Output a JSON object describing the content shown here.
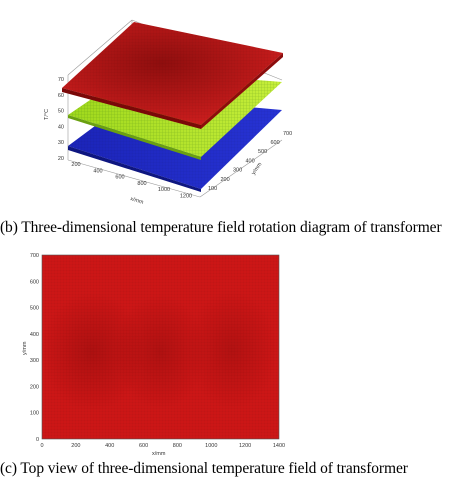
{
  "captions": {
    "b": "(b) Three-dimensional temperature field rotation diagram of transformer",
    "c": "(c) Top view of three-dimensional temperature field of transformer"
  },
  "chart_data": [
    {
      "type": "surface3d",
      "zlabel": "T/°C",
      "xlabel": "x/mm",
      "ylabel": "y/mm",
      "z_ticks": [
        "20",
        "30",
        "40",
        "50",
        "60",
        "70"
      ],
      "x_ticks": [
        "200",
        "400",
        "600",
        "800",
        "1000",
        "1200"
      ],
      "y_ticks": [
        "100",
        "200",
        "300",
        "400",
        "500",
        "600",
        "700"
      ],
      "layers": [
        {
          "color": "#c41a1a",
          "level": 68
        },
        {
          "color": "#a6e01e",
          "level": 50
        },
        {
          "color": "#1d28c2",
          "level": 38
        }
      ]
    },
    {
      "type": "heatmap",
      "xlabel": "x/mm",
      "ylabel": "y/mm",
      "x_ticks": [
        "0",
        "200",
        "400",
        "600",
        "800",
        "1000",
        "1200",
        "1400"
      ],
      "y_ticks": [
        "0",
        "100",
        "200",
        "300",
        "400",
        "500",
        "600",
        "700"
      ],
      "xlim": [
        0,
        1400
      ],
      "ylim": [
        0,
        700
      ],
      "colors": {
        "base": "#cc1616",
        "hot": "#8a0a0a"
      }
    }
  ]
}
